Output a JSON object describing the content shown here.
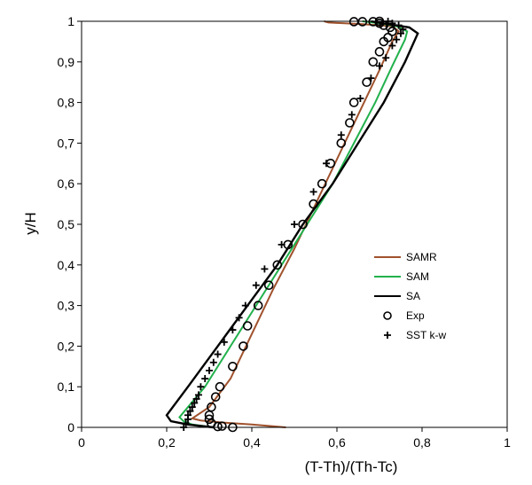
{
  "chart_data": {
    "type": "line",
    "title": "",
    "xlabel": "(T-Th)/(Th-Tc)",
    "ylabel": "y/H",
    "xlim": [
      0,
      1
    ],
    "ylim": [
      0,
      1
    ],
    "x_ticks": [
      "0",
      "0,2",
      "0,4",
      "0,6",
      "0,8",
      "1"
    ],
    "y_ticks": [
      "0",
      "0,1",
      "0,2",
      "0,3",
      "0,4",
      "0,5",
      "0,6",
      "0,7",
      "0,8",
      "0,9",
      "1"
    ],
    "grid": false,
    "legend_position": "center-right",
    "series": [
      {
        "name": "SAMR",
        "style": "line",
        "color": "#a0522d",
        "points": [
          [
            0.48,
            0.0
          ],
          [
            0.4,
            0.007
          ],
          [
            0.33,
            0.012
          ],
          [
            0.28,
            0.017
          ],
          [
            0.26,
            0.022
          ],
          [
            0.3,
            0.05
          ],
          [
            0.35,
            0.12
          ],
          [
            0.4,
            0.23
          ],
          [
            0.45,
            0.34
          ],
          [
            0.5,
            0.44
          ],
          [
            0.55,
            0.55
          ],
          [
            0.6,
            0.66
          ],
          [
            0.65,
            0.77
          ],
          [
            0.7,
            0.88
          ],
          [
            0.73,
            0.95
          ],
          [
            0.745,
            0.975
          ],
          [
            0.73,
            0.988
          ],
          [
            0.66,
            0.993
          ],
          [
            0.58,
            0.997
          ],
          [
            0.57,
            1.0
          ]
        ]
      },
      {
        "name": "SAM",
        "style": "line",
        "color": "#22b14c",
        "points": [
          [
            0.31,
            0.0
          ],
          [
            0.26,
            0.007
          ],
          [
            0.24,
            0.015
          ],
          [
            0.23,
            0.025
          ],
          [
            0.29,
            0.1
          ],
          [
            0.35,
            0.2
          ],
          [
            0.41,
            0.3
          ],
          [
            0.47,
            0.4
          ],
          [
            0.53,
            0.5
          ],
          [
            0.59,
            0.6
          ],
          [
            0.64,
            0.7
          ],
          [
            0.69,
            0.8
          ],
          [
            0.73,
            0.89
          ],
          [
            0.76,
            0.955
          ],
          [
            0.765,
            0.975
          ],
          [
            0.74,
            0.988
          ],
          [
            0.7,
            0.995
          ],
          [
            0.66,
            1.0
          ]
        ]
      },
      {
        "name": "SA",
        "style": "line",
        "color": "#000000",
        "points": [
          [
            0.31,
            0.0
          ],
          [
            0.25,
            0.007
          ],
          [
            0.21,
            0.015
          ],
          [
            0.2,
            0.03
          ],
          [
            0.25,
            0.1
          ],
          [
            0.32,
            0.2
          ],
          [
            0.39,
            0.3
          ],
          [
            0.46,
            0.4
          ],
          [
            0.52,
            0.5
          ],
          [
            0.59,
            0.6
          ],
          [
            0.65,
            0.7
          ],
          [
            0.71,
            0.8
          ],
          [
            0.76,
            0.9
          ],
          [
            0.79,
            0.97
          ],
          [
            0.77,
            0.985
          ],
          [
            0.72,
            0.993
          ],
          [
            0.68,
            1.0
          ]
        ]
      },
      {
        "name": "Exp",
        "style": "circle",
        "color": "#000000",
        "points": [
          [
            0.355,
            0.0
          ],
          [
            0.32,
            0.002
          ],
          [
            0.33,
            0.003
          ],
          [
            0.305,
            0.01
          ],
          [
            0.3,
            0.02
          ],
          [
            0.3,
            0.03
          ],
          [
            0.305,
            0.05
          ],
          [
            0.315,
            0.075
          ],
          [
            0.325,
            0.1
          ],
          [
            0.355,
            0.15
          ],
          [
            0.38,
            0.2
          ],
          [
            0.39,
            0.25
          ],
          [
            0.415,
            0.3
          ],
          [
            0.44,
            0.35
          ],
          [
            0.46,
            0.4
          ],
          [
            0.485,
            0.45
          ],
          [
            0.52,
            0.5
          ],
          [
            0.545,
            0.55
          ],
          [
            0.565,
            0.6
          ],
          [
            0.585,
            0.65
          ],
          [
            0.61,
            0.7
          ],
          [
            0.63,
            0.75
          ],
          [
            0.64,
            0.8
          ],
          [
            0.67,
            0.85
          ],
          [
            0.685,
            0.9
          ],
          [
            0.7,
            0.925
          ],
          [
            0.71,
            0.95
          ],
          [
            0.72,
            0.96
          ],
          [
            0.73,
            0.975
          ],
          [
            0.725,
            0.985
          ],
          [
            0.71,
            0.99
          ],
          [
            0.7,
            0.995
          ],
          [
            0.64,
            0.999
          ],
          [
            0.66,
            0.999
          ],
          [
            0.685,
            0.999
          ],
          [
            0.7,
            1.0
          ]
        ]
      },
      {
        "name": "SST k-w",
        "style": "plus",
        "color": "#000000",
        "points": [
          [
            0.24,
            0.0
          ],
          [
            0.245,
            0.01
          ],
          [
            0.25,
            0.02
          ],
          [
            0.25,
            0.03
          ],
          [
            0.255,
            0.04
          ],
          [
            0.26,
            0.05
          ],
          [
            0.265,
            0.06
          ],
          [
            0.27,
            0.07
          ],
          [
            0.275,
            0.08
          ],
          [
            0.28,
            0.1
          ],
          [
            0.29,
            0.12
          ],
          [
            0.3,
            0.14
          ],
          [
            0.31,
            0.16
          ],
          [
            0.32,
            0.18
          ],
          [
            0.335,
            0.21
          ],
          [
            0.355,
            0.24
          ],
          [
            0.37,
            0.27
          ],
          [
            0.385,
            0.3
          ],
          [
            0.41,
            0.35
          ],
          [
            0.43,
            0.39
          ],
          [
            0.47,
            0.45
          ],
          [
            0.5,
            0.5
          ],
          [
            0.545,
            0.58
          ],
          [
            0.575,
            0.65
          ],
          [
            0.61,
            0.72
          ],
          [
            0.635,
            0.77
          ],
          [
            0.655,
            0.81
          ],
          [
            0.68,
            0.86
          ],
          [
            0.7,
            0.89
          ],
          [
            0.715,
            0.91
          ],
          [
            0.73,
            0.94
          ],
          [
            0.74,
            0.955
          ],
          [
            0.75,
            0.97
          ],
          [
            0.755,
            0.98
          ],
          [
            0.745,
            0.99
          ],
          [
            0.73,
            0.995
          ],
          [
            0.72,
            1.0
          ]
        ]
      }
    ]
  }
}
